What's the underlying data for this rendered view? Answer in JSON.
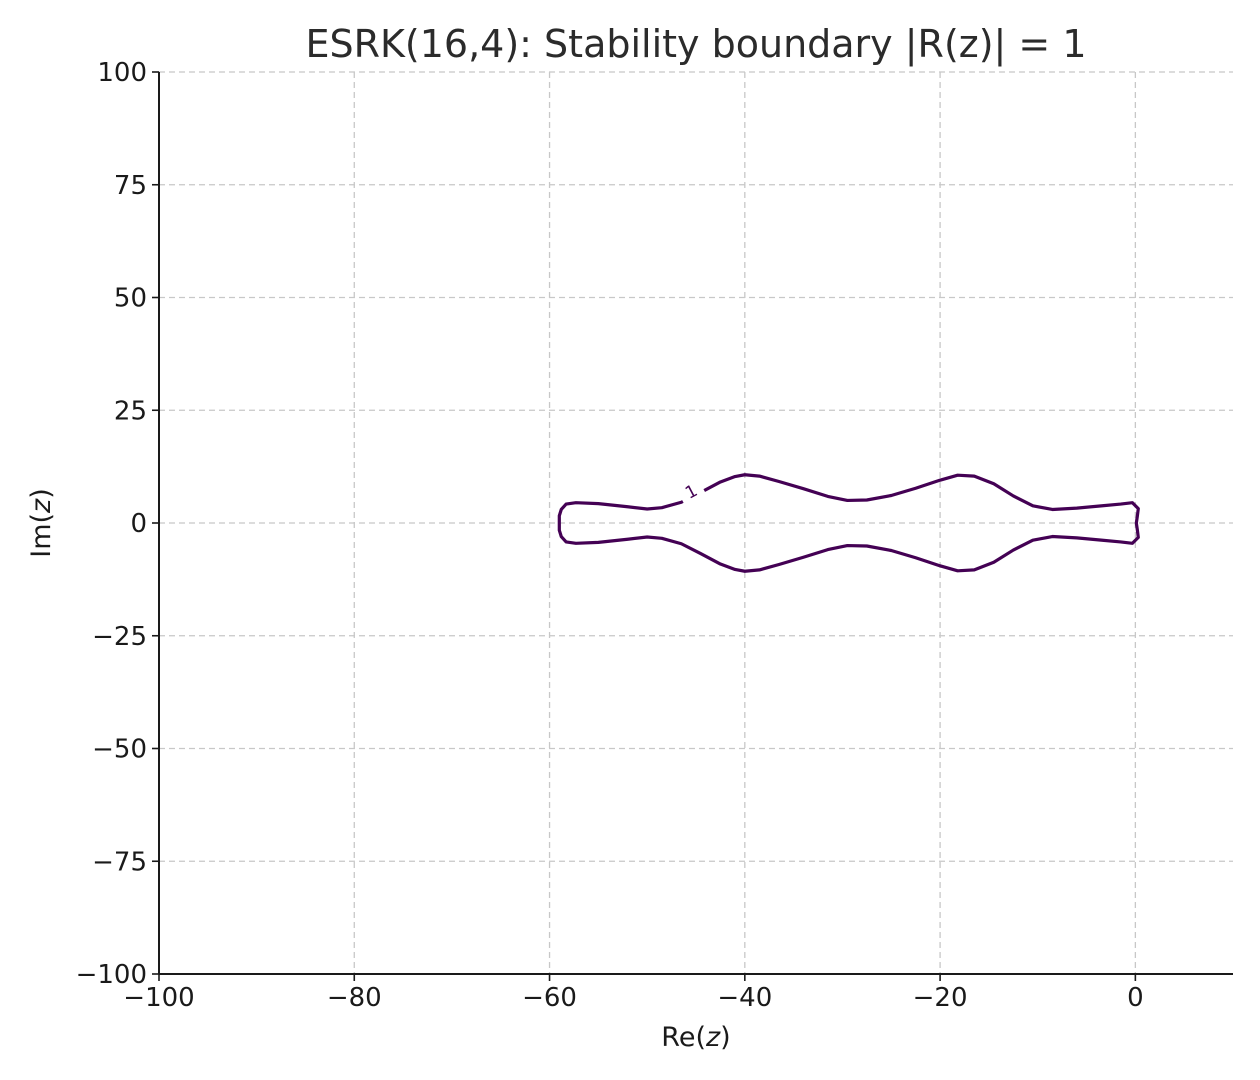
{
  "chart_data": {
    "type": "line",
    "title": "ESRK(16,4): Stability boundary |R(z)| = 1",
    "xlabel_main": "Re(",
    "xlabel_var": "z",
    "xlabel_end": ")",
    "ylabel_main": "Im(",
    "ylabel_var": "z",
    "ylabel_end": ")",
    "xlim": [
      -100,
      10
    ],
    "ylim": [
      -100,
      100
    ],
    "xticks": [
      -100,
      -80,
      -60,
      -40,
      -20,
      0
    ],
    "xtick_labels": [
      "−100",
      "−80",
      "−60",
      "−40",
      "−20",
      "0"
    ],
    "yticks": [
      -100,
      -75,
      -50,
      -25,
      0,
      25,
      50,
      75,
      100
    ],
    "ytick_labels": [
      "−100",
      "−75",
      "−50",
      "−25",
      "0",
      "25",
      "50",
      "75",
      "100"
    ],
    "grid": true,
    "contour_level_label": "1",
    "contour_label_pos": [
      -45.5,
      7.0
    ],
    "line_color": "#440154",
    "series": [
      {
        "upper_boundary": [
          [
            -59.0,
            0.0
          ],
          [
            -59.0,
            1.6
          ],
          [
            -58.8,
            3.0
          ],
          [
            -58.3,
            4.2
          ],
          [
            -57.3,
            4.5
          ],
          [
            -55.0,
            4.3
          ],
          [
            -52.0,
            3.6
          ],
          [
            -50.0,
            3.1
          ],
          [
            -48.5,
            3.4
          ],
          [
            -46.5,
            4.6
          ],
          [
            -44.5,
            6.8
          ],
          [
            -42.5,
            9.1
          ],
          [
            -41.0,
            10.3
          ],
          [
            -40.0,
            10.7
          ],
          [
            -38.5,
            10.4
          ],
          [
            -36.5,
            9.2
          ],
          [
            -34.0,
            7.6
          ],
          [
            -31.5,
            5.9
          ],
          [
            -29.5,
            5.0
          ],
          [
            -27.5,
            5.1
          ],
          [
            -25.0,
            6.1
          ],
          [
            -22.5,
            7.7
          ],
          [
            -20.0,
            9.5
          ],
          [
            -18.2,
            10.6
          ],
          [
            -16.5,
            10.4
          ],
          [
            -14.5,
            8.7
          ],
          [
            -12.5,
            6.0
          ],
          [
            -10.5,
            3.8
          ],
          [
            -8.5,
            3.0
          ],
          [
            -6.0,
            3.3
          ],
          [
            -3.5,
            3.8
          ],
          [
            -1.5,
            4.2
          ],
          [
            -0.3,
            4.5
          ],
          [
            0.3,
            3.2
          ],
          [
            0.2,
            1.5
          ],
          [
            0.1,
            0.0
          ]
        ]
      }
    ]
  }
}
